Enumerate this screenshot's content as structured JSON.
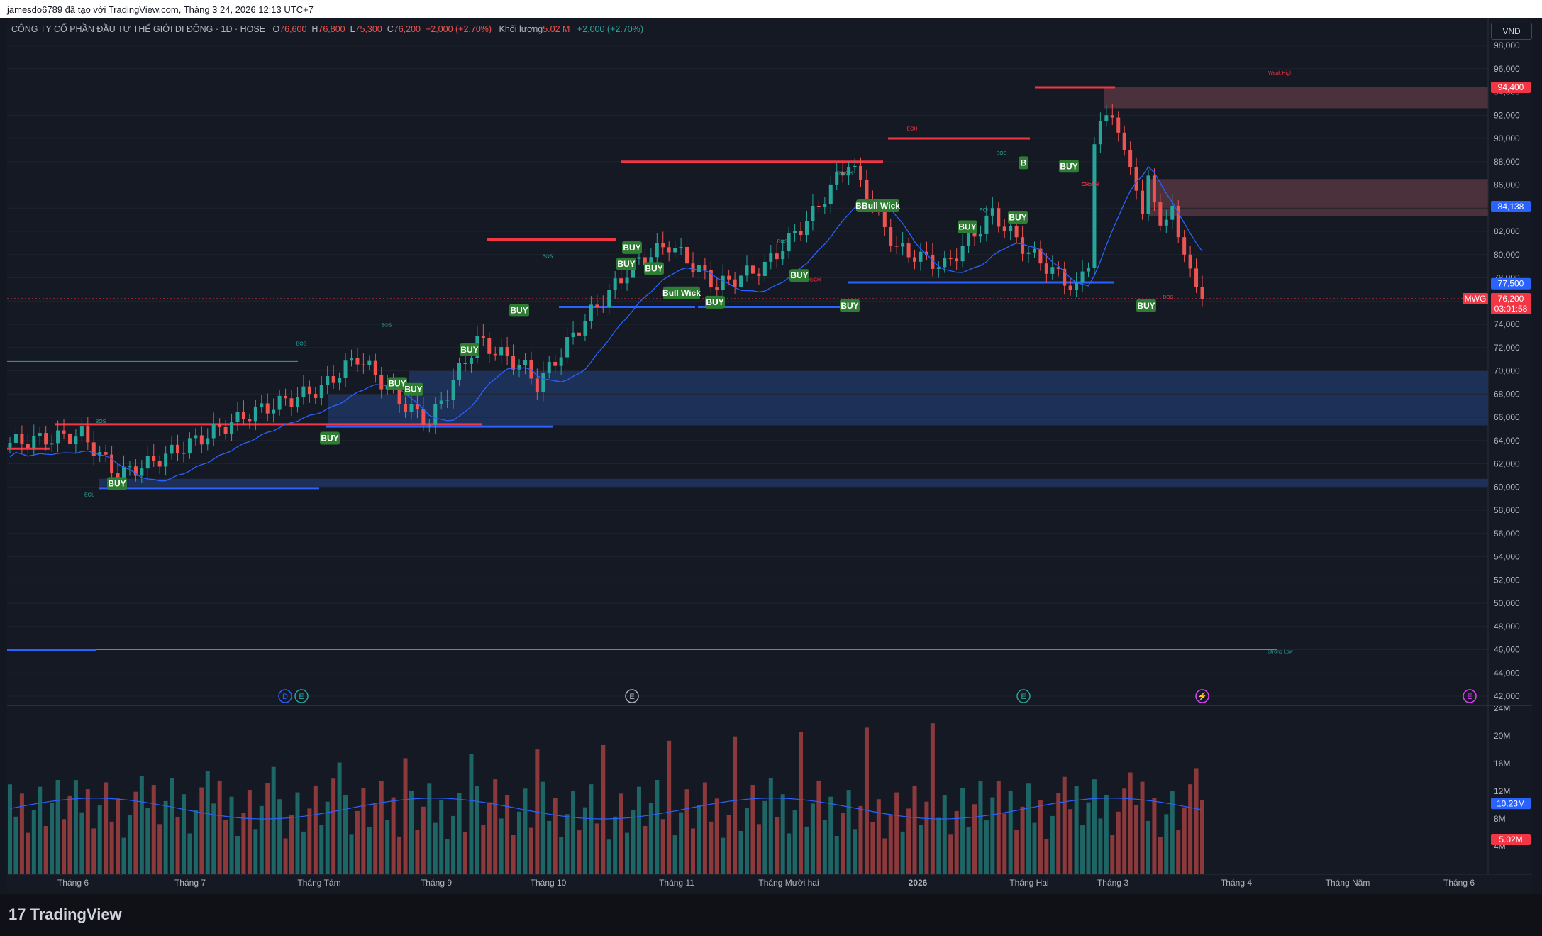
{
  "header": {
    "text": "jamesdo6789 đã tạo với TradingView.com, Tháng 3 24, 2026 12:13 UTC+7"
  },
  "legend": {
    "title": "CÔNG TY CỔ PHẦN ĐẦU TƯ THẾ GIỚI DI ĐỘNG · 1D · HOSE",
    "o_label": "O",
    "o_value": "76,600",
    "h_label": "H",
    "h_value": "76,800",
    "l_label": "L",
    "l_value": "75,300",
    "c_label": "C",
    "c_value": "76,200",
    "change": "+2,000 (+2.70%)",
    "vol_label": "Khối lượng",
    "vol_value": "5.02 M",
    "vol_change": "+2,000 (+2.70%)"
  },
  "currency": "VND",
  "footer": {
    "logo": "TradingView"
  },
  "colors": {
    "up": "#26a69a",
    "down": "#ef5350",
    "ma": "#2962ff",
    "bg": "#151924"
  },
  "chart_data": {
    "type": "candlestick",
    "symbol": "MWG",
    "ylim": [
      40500,
      98600
    ],
    "y_ticks": [
      "98,000",
      "96,000",
      "94,000",
      "92,000",
      "90,000",
      "88,000",
      "86,000",
      "84,000",
      "82,000",
      "80,000",
      "78,000",
      "76,000",
      "74,000",
      "72,000",
      "70,000",
      "68,000",
      "66,000",
      "64,000",
      "62,000",
      "60,000",
      "58,000",
      "56,000",
      "54,000",
      "52,000",
      "50,000",
      "48,000",
      "46,000",
      "44,000",
      "42,000"
    ],
    "x_labels": [
      "Tháng 6",
      "Tháng 7",
      "Tháng Tám",
      "Tháng 9",
      "Tháng 10",
      "Tháng 11",
      "Tháng Mười hai",
      "2026",
      "Tháng Hai",
      "Tháng 3",
      "Tháng 4",
      "Tháng Năm",
      "Tháng 6"
    ],
    "price_tags": [
      {
        "label": "94,400",
        "value": 94400,
        "color": "#f23645"
      },
      {
        "label": "84,138",
        "value": 84138,
        "color": "#2962ff"
      },
      {
        "label": "77,500",
        "value": 77500,
        "color": "#2962ff"
      },
      {
        "label": "MWG",
        "value": 76200,
        "color": "#f23645"
      },
      {
        "label": "76,200",
        "value": 76200,
        "color": "#f23645"
      },
      {
        "label": "03:01:58",
        "value": 75200,
        "color": "#f23645"
      }
    ],
    "volume_ticks": [
      "24M",
      "20M",
      "16M",
      "12M",
      "8M",
      "4M"
    ],
    "volume_tags": [
      {
        "label": "10.23M",
        "value": 10.23,
        "color": "#2962ff"
      },
      {
        "label": "5.02M",
        "value": 5.02,
        "color": "#f23645"
      }
    ],
    "volume_ylim": [
      0,
      24
    ],
    "signals": [
      "BUY",
      "BUY",
      "BUY",
      "BUY",
      "BUY",
      "BUY",
      "BUY",
      "BUY",
      "Bull Wick",
      "BUY",
      "BUY",
      "Bull Wick",
      "BUY",
      "BUY",
      "Bull Wick",
      "BUY",
      "BUY",
      "B",
      "BUY",
      "BUY"
    ],
    "small_labels": [
      "BOS",
      "BOS",
      "BOS",
      "BOS",
      "EQL",
      "CHoCH",
      "BOS",
      "EQH",
      "CHoCH",
      "BOS",
      "EQL",
      "CHoCH",
      "BOS",
      "CHoCH",
      "Weak High",
      "Strong Low"
    ],
    "events": [
      "D",
      "E",
      "E",
      "E",
      "⚡",
      "E"
    ]
  }
}
